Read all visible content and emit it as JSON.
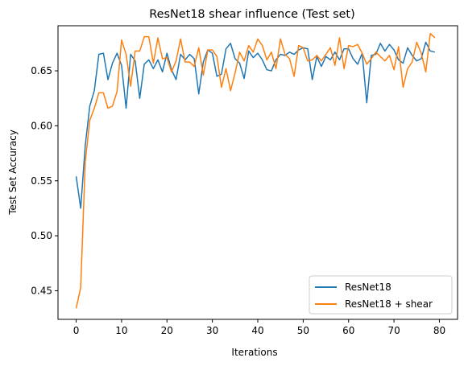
{
  "chart_data": {
    "type": "line",
    "title": "ResNet18 shear influence (Test set)",
    "xlabel": "Iterations",
    "ylabel": "Test Set Accuracy",
    "xlim": [
      -4,
      84
    ],
    "ylim": [
      0.424,
      0.691
    ],
    "xticks": [
      0,
      10,
      20,
      30,
      40,
      50,
      60,
      70,
      80
    ],
    "yticks": [
      0.45,
      0.5,
      0.55,
      0.6,
      0.65
    ],
    "ytick_labels": [
      "0.45",
      "0.50",
      "0.55",
      "0.60",
      "0.65"
    ],
    "grid": false,
    "legend_position": "lower-right",
    "x": [
      0,
      1,
      2,
      3,
      4,
      5,
      6,
      7,
      8,
      9,
      10,
      11,
      12,
      13,
      14,
      15,
      16,
      17,
      18,
      19,
      20,
      21,
      22,
      23,
      24,
      25,
      26,
      27,
      28,
      29,
      30,
      31,
      32,
      33,
      34,
      35,
      36,
      37,
      38,
      39,
      40,
      41,
      42,
      43,
      44,
      45,
      46,
      47,
      48,
      49,
      50,
      51,
      52,
      53,
      54,
      55,
      56,
      57,
      58,
      59,
      60,
      61,
      62,
      63,
      64,
      65,
      66,
      67,
      68,
      69,
      70,
      71,
      72,
      73,
      74,
      75,
      76,
      77,
      78,
      79
    ],
    "series": [
      {
        "name": "ResNet18",
        "color": "#1f77b4",
        "values": [
          0.554,
          0.525,
          0.582,
          0.618,
          0.632,
          0.665,
          0.666,
          0.642,
          0.657,
          0.666,
          0.655,
          0.616,
          0.665,
          0.659,
          0.625,
          0.656,
          0.66,
          0.652,
          0.66,
          0.649,
          0.666,
          0.651,
          0.642,
          0.665,
          0.66,
          0.665,
          0.661,
          0.629,
          0.658,
          0.669,
          0.666,
          0.645,
          0.647,
          0.67,
          0.675,
          0.661,
          0.657,
          0.643,
          0.668,
          0.662,
          0.666,
          0.66,
          0.651,
          0.65,
          0.66,
          0.665,
          0.664,
          0.667,
          0.665,
          0.669,
          0.671,
          0.67,
          0.642,
          0.663,
          0.654,
          0.663,
          0.66,
          0.667,
          0.66,
          0.67,
          0.67,
          0.661,
          0.656,
          0.666,
          0.621,
          0.664,
          0.665,
          0.675,
          0.668,
          0.674,
          0.669,
          0.66,
          0.657,
          0.671,
          0.664,
          0.659,
          0.661,
          0.676,
          0.668,
          0.667
        ]
      },
      {
        "name": "ResNet18 + shear",
        "color": "#ff7f0e",
        "values": [
          0.434,
          0.453,
          0.567,
          0.605,
          0.616,
          0.63,
          0.63,
          0.616,
          0.618,
          0.631,
          0.678,
          0.665,
          0.636,
          0.668,
          0.668,
          0.681,
          0.681,
          0.657,
          0.68,
          0.661,
          0.662,
          0.649,
          0.659,
          0.679,
          0.658,
          0.658,
          0.654,
          0.671,
          0.646,
          0.669,
          0.669,
          0.663,
          0.635,
          0.652,
          0.632,
          0.648,
          0.667,
          0.659,
          0.673,
          0.667,
          0.679,
          0.673,
          0.66,
          0.667,
          0.652,
          0.679,
          0.665,
          0.661,
          0.645,
          0.673,
          0.671,
          0.659,
          0.66,
          0.664,
          0.659,
          0.665,
          0.671,
          0.655,
          0.68,
          0.652,
          0.673,
          0.672,
          0.674,
          0.666,
          0.656,
          0.661,
          0.667,
          0.663,
          0.659,
          0.664,
          0.651,
          0.672,
          0.635,
          0.652,
          0.658,
          0.676,
          0.666,
          0.649,
          0.684,
          0.68
        ]
      }
    ]
  }
}
